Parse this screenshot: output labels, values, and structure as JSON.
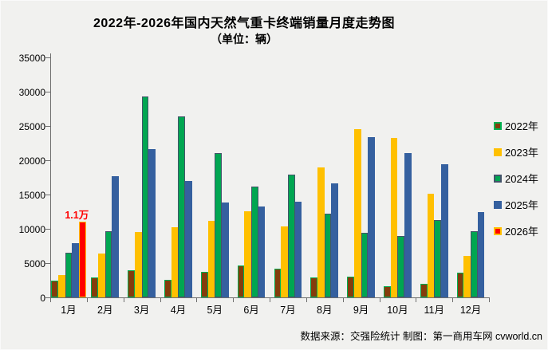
{
  "page": {
    "background": "#f1f1ef"
  },
  "header": {
    "title": "2022年-2026年国内天然气重卡终端销量月度走势图",
    "subtitle": "（单位：辆）"
  },
  "chart_data": {
    "type": "bar",
    "title": "2022年-2026年国内天然气重卡终端销量月度走势图",
    "subtitle": "（单位：辆）",
    "categories": [
      "1月",
      "2月",
      "3月",
      "4月",
      "5月",
      "6月",
      "7月",
      "8月",
      "9月",
      "10月",
      "11月",
      "12月"
    ],
    "series": [
      {
        "name": "2022年",
        "fill": "#843C0C",
        "border": "#00B050",
        "values": [
          2500,
          2900,
          3900,
          2600,
          3700,
          4700,
          4200,
          2900,
          3000,
          1600,
          2000,
          3600
        ]
      },
      {
        "name": "2023年",
        "fill": "#FFC000",
        "border": "#FFC000",
        "values": [
          3300,
          6400,
          9500,
          10200,
          11200,
          12600,
          10400,
          18900,
          24500,
          23200,
          15100,
          6000
        ]
      },
      {
        "name": "2024年",
        "fill": "#00A651",
        "border": "#44546A",
        "values": [
          6500,
          9700,
          29300,
          26400,
          21000,
          16200,
          17900,
          12200,
          9400,
          8900,
          11300,
          9600
        ]
      },
      {
        "name": "2025年",
        "fill": "#35609F",
        "border": "#35609F",
        "values": [
          7900,
          17700,
          21600,
          17000,
          13800,
          13300,
          13900,
          16600,
          23400,
          21100,
          19400,
          12500
        ]
      },
      {
        "name": "2026年",
        "fill": "#FF0000",
        "border": "#FFC000",
        "values": [
          11000,
          null,
          null,
          null,
          null,
          null,
          null,
          null,
          null,
          null,
          null,
          null
        ]
      }
    ],
    "ylim": [
      0,
      35000
    ],
    "ytick_step": 5000,
    "grid": false,
    "legend_position": "right",
    "annotations": [
      {
        "text": "1.1万",
        "series_index": 4,
        "category_index": 0,
        "color": "#FF0000"
      }
    ]
  },
  "footer": {
    "text": "数据来源：交强险统计  制图：第一商用车网 cvworld.cn"
  }
}
